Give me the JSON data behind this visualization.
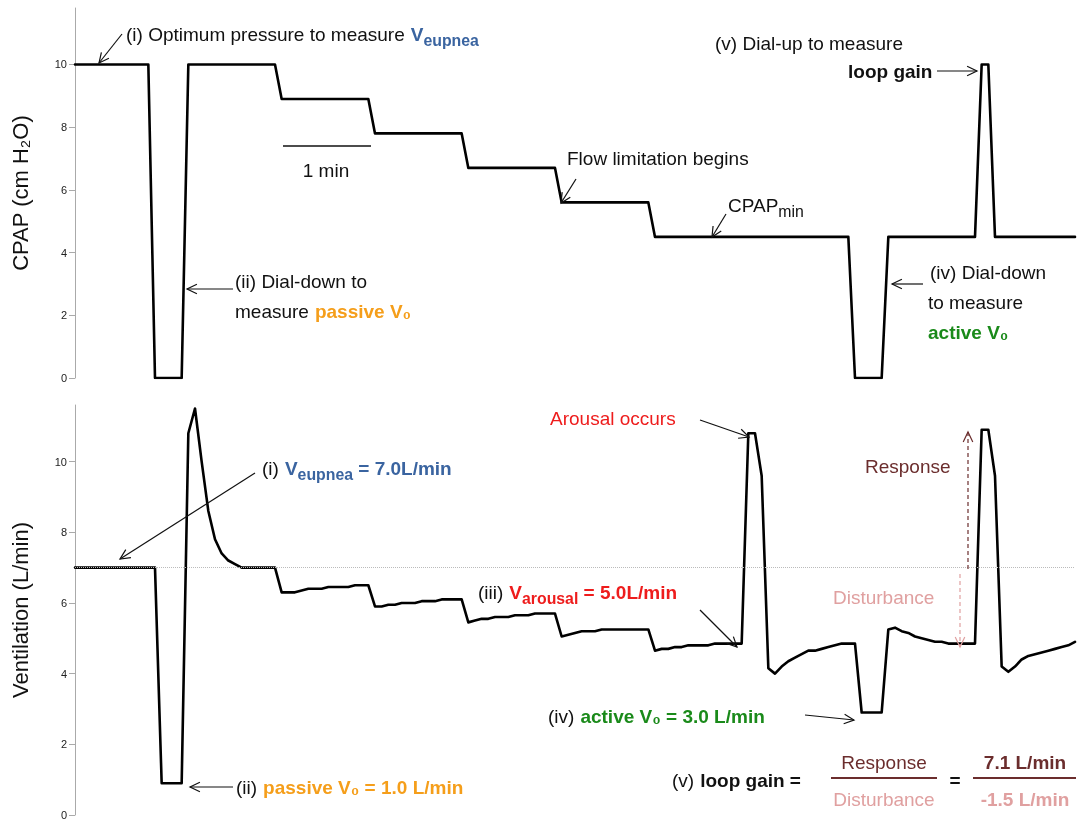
{
  "chart_data": [
    {
      "type": "line",
      "ylabel": "CPAP (cm H₂O)",
      "ylim": [
        0,
        11.8
      ],
      "yticks": [
        0,
        2,
        4,
        6,
        8,
        10
      ],
      "tick_labels": "y",
      "categories": [
        null,
        null,
        null,
        null,
        null,
        null,
        null,
        null,
        null,
        null,
        null,
        null,
        null,
        null,
        null,
        null,
        null,
        null,
        null,
        null,
        null,
        null,
        null,
        null,
        null,
        null,
        null,
        null,
        null,
        null,
        null,
        null,
        null,
        null,
        null,
        null,
        null,
        null,
        null,
        null,
        null,
        null,
        null,
        null,
        null,
        null,
        null,
        null,
        null,
        null,
        null,
        null,
        null,
        null,
        null,
        null,
        null,
        null,
        null,
        null,
        null,
        null,
        null,
        null,
        null,
        null,
        null,
        null,
        null,
        null,
        null,
        null,
        null,
        null,
        null,
        null,
        null,
        null,
        null,
        null,
        null,
        null,
        null,
        null,
        null,
        null,
        null,
        null,
        null,
        null,
        null,
        null,
        null,
        null,
        null,
        null,
        null,
        null,
        null,
        null,
        null,
        null,
        null,
        null,
        null,
        null,
        null,
        null,
        null,
        null,
        null,
        null,
        null,
        null,
        null,
        null,
        null,
        null,
        null,
        null,
        null,
        null,
        null,
        null,
        null,
        null,
        null,
        null,
        null,
        null,
        null,
        null,
        null,
        null,
        null,
        null,
        null,
        null,
        null,
        null,
        null,
        null,
        null,
        null,
        null,
        null,
        null,
        null,
        null,
        null,
        null
      ],
      "series": [
        {
          "color": "#000000",
          "values": [
            10,
            10,
            10,
            10,
            10,
            10,
            10,
            10,
            10,
            10,
            10,
            10,
            0,
            0,
            0,
            0,
            0,
            10,
            10,
            10,
            10,
            10,
            10,
            10,
            10,
            10,
            10,
            10,
            10,
            10,
            10,
            8.9,
            8.9,
            8.9,
            8.9,
            8.9,
            8.9,
            8.9,
            8.9,
            8.9,
            8.9,
            8.9,
            8.9,
            8.9,
            8.9,
            7.8,
            7.8,
            7.8,
            7.8,
            7.8,
            7.8,
            7.8,
            7.8,
            7.8,
            7.8,
            7.8,
            7.8,
            7.8,
            7.8,
            6.7,
            6.7,
            6.7,
            6.7,
            6.7,
            6.7,
            6.7,
            6.7,
            6.7,
            6.7,
            6.7,
            6.7,
            6.7,
            6.7,
            5.6,
            5.6,
            5.6,
            5.6,
            5.6,
            5.6,
            5.6,
            5.6,
            5.6,
            5.6,
            5.6,
            5.6,
            5.6,
            5.6,
            4.5,
            4.5,
            4.5,
            4.5,
            4.5,
            4.5,
            4.5,
            4.5,
            4.5,
            4.5,
            4.5,
            4.5,
            4.5,
            4.5,
            4.5,
            4.5,
            4.5,
            4.5,
            4.5,
            4.5,
            4.5,
            4.5,
            4.5,
            4.5,
            4.5,
            4.5,
            4.5,
            4.5,
            4.5,
            4.5,
            0,
            0,
            0,
            0,
            0,
            4.5,
            4.5,
            4.5,
            4.5,
            4.5,
            4.5,
            4.5,
            4.5,
            4.5,
            4.5,
            4.5,
            4.5,
            4.5,
            4.5,
            10,
            10,
            4.5,
            4.5,
            4.5,
            4.5,
            4.5,
            4.5,
            4.5,
            4.5,
            4.5,
            4.5,
            4.5,
            4.5,
            4.5
          ]
        }
      ],
      "annotations": [
        "(i) Optimum pressure to measure",
        "V$_{eupnea}$",
        "1 min",
        "Flow limitation begins",
        "CPAP$_{min}$",
        "(v) Dial-up to measure",
        "loop gain",
        "(ii) Dial-down to",
        "measure",
        "passive V₀",
        "(iv) Dial-down",
        "to measure",
        "active V₀"
      ]
    },
    {
      "type": "line",
      "ylabel": "Ventilation (L/min)",
      "ylim": [
        0,
        11.6
      ],
      "yticks": [
        0,
        2,
        4,
        6,
        8,
        10
      ],
      "tick_labels": "y",
      "categories": [
        null,
        null,
        null,
        null,
        null,
        null,
        null,
        null,
        null,
        null,
        null,
        null,
        null,
        null,
        null,
        null,
        null,
        null,
        null,
        null,
        null,
        null,
        null,
        null,
        null,
        null,
        null,
        null,
        null,
        null,
        null,
        null,
        null,
        null,
        null,
        null,
        null,
        null,
        null,
        null,
        null,
        null,
        null,
        null,
        null,
        null,
        null,
        null,
        null,
        null,
        null,
        null,
        null,
        null,
        null,
        null,
        null,
        null,
        null,
        null,
        null,
        null,
        null,
        null,
        null,
        null,
        null,
        null,
        null,
        null,
        null,
        null,
        null,
        null,
        null,
        null,
        null,
        null,
        null,
        null,
        null,
        null,
        null,
        null,
        null,
        null,
        null,
        null,
        null,
        null,
        null,
        null,
        null,
        null,
        null,
        null,
        null,
        null,
        null,
        null,
        null,
        null,
        null,
        null,
        null,
        null,
        null,
        null,
        null,
        null,
        null,
        null,
        null,
        null,
        null,
        null,
        null,
        null,
        null,
        null,
        null,
        null,
        null,
        null,
        null,
        null,
        null,
        null,
        null,
        null,
        null,
        null,
        null,
        null,
        null,
        null,
        null,
        null,
        null,
        null,
        null,
        null,
        null,
        null,
        null,
        null,
        null,
        null,
        null,
        null,
        null
      ],
      "series": [
        {
          "color": "#000000",
          "values": [
            7,
            7,
            7,
            7,
            7,
            7,
            7,
            7,
            7,
            7,
            7,
            7,
            7,
            0.9,
            0.9,
            0.9,
            0.9,
            10.8,
            11.5,
            10,
            8.6,
            7.8,
            7.4,
            7.2,
            7.1,
            7,
            7,
            7,
            7,
            7,
            7,
            6.3,
            6.3,
            6.3,
            6.35,
            6.4,
            6.4,
            6.4,
            6.45,
            6.45,
            6.45,
            6.45,
            6.5,
            6.5,
            6.5,
            5.9,
            5.9,
            5.95,
            5.95,
            6,
            6,
            6,
            6.05,
            6.05,
            6.05,
            6.1,
            6.1,
            6.1,
            6.1,
            5.45,
            5.5,
            5.55,
            5.55,
            5.6,
            5.6,
            5.6,
            5.65,
            5.65,
            5.65,
            5.7,
            5.7,
            5.7,
            5.7,
            5.05,
            5.1,
            5.15,
            5.2,
            5.2,
            5.2,
            5.25,
            5.25,
            5.25,
            5.25,
            5.25,
            5.25,
            5.25,
            5.25,
            4.65,
            4.7,
            4.7,
            4.75,
            4.75,
            4.8,
            4.8,
            4.8,
            4.8,
            4.85,
            4.85,
            4.85,
            4.85,
            4.85,
            10.8,
            10.8,
            9.6,
            4.15,
            4,
            4.2,
            4.35,
            4.45,
            4.55,
            4.65,
            4.65,
            4.7,
            4.75,
            4.8,
            4.85,
            4.85,
            4.85,
            2.9,
            2.9,
            2.9,
            2.9,
            5.25,
            5.3,
            5.2,
            5.15,
            5.05,
            5,
            4.95,
            4.9,
            4.9,
            4.85,
            4.85,
            4.85,
            4.85,
            4.85,
            10.9,
            10.9,
            9.6,
            4.2,
            4.05,
            4.2,
            4.4,
            4.5,
            4.55,
            4.6,
            4.65,
            4.7,
            4.75,
            4.8,
            4.9
          ]
        }
      ],
      "ref_lines": [
        {
          "axis": "y",
          "value": 7,
          "color": "#bbbbbb",
          "line_style": "dotted"
        }
      ],
      "annotations": [
        "(i)",
        "V$_{eupnea}$ = 7.0L/min",
        "(ii)",
        "passive V₀ = 1.0 L/min",
        "(iii)",
        "V$_{arousal}$ = 5.0L/min",
        "Arousal occurs",
        "Response",
        "Disturbance",
        "(iv)",
        "active V₀ = 3.0 L/min",
        "(v)",
        "loop gain =",
        "Response",
        "Disturbance",
        "=",
        "7.1 L/min",
        "-1.5 L/min"
      ]
    }
  ]
}
